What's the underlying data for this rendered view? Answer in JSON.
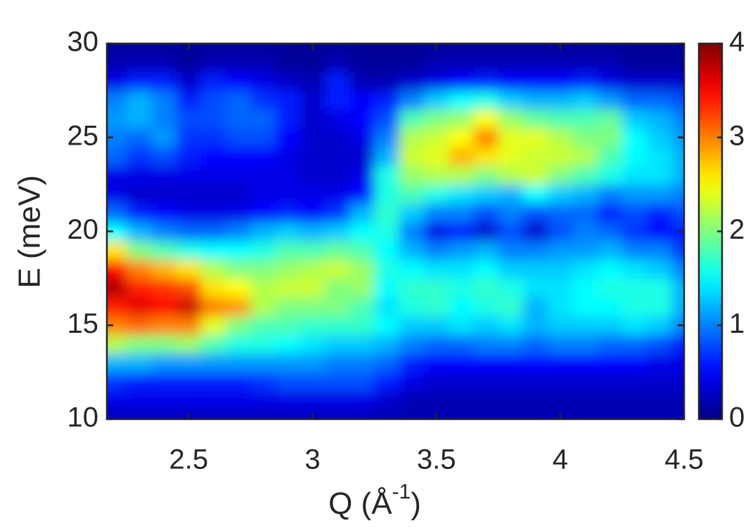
{
  "chart_data": {
    "type": "heatmap",
    "y_label": "E (meV)",
    "x_label": "Q (Å",
    "x_label_sup": "-1",
    "x_label_end": ")",
    "xlim": [
      2.17,
      4.5
    ],
    "ylim": [
      10,
      30
    ],
    "xticks": [
      2.5,
      3,
      3.5,
      4,
      4.5
    ],
    "yticks": [
      10,
      15,
      20,
      25,
      30
    ],
    "clim": [
      0,
      4
    ],
    "cticks": [
      0,
      1,
      2,
      3,
      4
    ],
    "colormap": "jet",
    "x": [
      2.2,
      2.3,
      2.4,
      2.5,
      2.6,
      2.7,
      2.8,
      2.9,
      3.0,
      3.1,
      3.2,
      3.3,
      3.4,
      3.5,
      3.6,
      3.7,
      3.8,
      3.9,
      4.0,
      4.1,
      4.2,
      4.3,
      4.4,
      4.5
    ],
    "y": [
      10,
      11,
      12,
      13,
      14,
      15,
      16,
      17,
      18,
      19,
      20,
      21,
      22,
      23,
      24,
      25,
      26,
      27,
      28,
      29,
      30
    ],
    "z": [
      [
        0.2,
        0.2,
        0.2,
        0.2,
        0.2,
        0.2,
        0.2,
        0.2,
        0.2,
        0.2,
        0.2,
        0.2,
        0.2,
        0.2,
        0.2,
        0.2,
        0.2,
        0.2,
        0.2,
        0.2,
        0.2,
        0.2,
        0.2,
        0.2
      ],
      [
        0.4,
        0.4,
        0.4,
        0.4,
        0.4,
        0.4,
        0.4,
        0.4,
        0.4,
        0.4,
        0.4,
        0.3,
        0.2,
        0.2,
        0.2,
        0.2,
        0.2,
        0.2,
        0.2,
        0.2,
        0.2,
        0.2,
        0.2,
        0.2
      ],
      [
        0.7,
        0.6,
        0.6,
        0.6,
        0.6,
        0.6,
        0.7,
        0.8,
        0.8,
        0.8,
        0.8,
        0.6,
        0.4,
        0.3,
        0.3,
        0.3,
        0.3,
        0.3,
        0.3,
        0.3,
        0.3,
        0.3,
        0.3,
        0.3
      ],
      [
        1.2,
        1.2,
        1.1,
        1.1,
        1.1,
        1.1,
        1.1,
        1.1,
        1.1,
        1.0,
        1.0,
        0.9,
        0.6,
        0.5,
        0.5,
        0.5,
        0.5,
        0.5,
        0.5,
        0.5,
        0.5,
        0.5,
        0.4,
        0.4
      ],
      [
        2.2,
        2.0,
        2.0,
        2.1,
        1.8,
        1.6,
        1.6,
        1.5,
        1.4,
        1.3,
        1.3,
        1.2,
        1.0,
        0.9,
        0.9,
        1.0,
        1.0,
        0.9,
        1.0,
        1.0,
        0.9,
        0.9,
        0.8,
        0.6
      ],
      [
        3.0,
        3.1,
        3.0,
        3.0,
        2.4,
        2.0,
        1.8,
        1.8,
        1.7,
        1.7,
        1.7,
        1.5,
        1.3,
        1.3,
        1.4,
        1.3,
        1.4,
        1.2,
        1.3,
        1.3,
        1.3,
        1.4,
        1.3,
        1.0
      ],
      [
        3.4,
        3.6,
        3.5,
        3.7,
        3.0,
        2.9,
        2.2,
        2.0,
        2.0,
        2.0,
        1.8,
        1.4,
        1.6,
        1.7,
        1.5,
        1.6,
        1.7,
        1.2,
        1.4,
        1.5,
        1.5,
        1.6,
        1.6,
        1.2
      ],
      [
        3.8,
        3.4,
        3.3,
        3.2,
        2.6,
        2.5,
        2.2,
        2.3,
        2.3,
        2.0,
        2.1,
        1.5,
        1.7,
        1.7,
        1.6,
        1.7,
        1.6,
        1.4,
        1.4,
        1.5,
        1.6,
        1.6,
        1.6,
        1.2
      ],
      [
        3.5,
        3.0,
        2.8,
        2.6,
        2.2,
        2.0,
        2.0,
        2.1,
        2.2,
        2.3,
        2.1,
        1.6,
        1.5,
        1.4,
        1.4,
        1.5,
        1.3,
        1.3,
        1.3,
        1.4,
        1.5,
        1.4,
        1.3,
        1.0
      ],
      [
        2.6,
        2.0,
        1.8,
        1.6,
        1.5,
        1.5,
        1.6,
        1.8,
        1.8,
        1.9,
        1.8,
        1.5,
        1.2,
        1.0,
        1.1,
        1.2,
        1.0,
        1.0,
        1.1,
        1.1,
        1.2,
        1.0,
        1.0,
        0.7
      ],
      [
        1.5,
        1.2,
        1.0,
        0.9,
        0.9,
        1.0,
        1.2,
        1.3,
        1.2,
        1.3,
        1.5,
        1.6,
        1.0,
        0.4,
        0.6,
        0.3,
        0.8,
        0.3,
        0.8,
        1.0,
        0.9,
        0.7,
        0.5,
        0.6
      ],
      [
        0.9,
        0.6,
        0.5,
        0.4,
        0.4,
        0.4,
        0.5,
        0.6,
        0.5,
        0.7,
        1.2,
        1.7,
        1.3,
        1.0,
        1.0,
        0.8,
        1.0,
        0.8,
        0.9,
        0.9,
        0.6,
        0.8,
        0.6,
        0.8
      ],
      [
        0.4,
        0.3,
        0.3,
        0.3,
        0.3,
        0.3,
        0.4,
        0.4,
        0.4,
        0.4,
        0.5,
        1.6,
        1.8,
        1.6,
        1.4,
        1.3,
        1.2,
        1.5,
        1.3,
        1.2,
        1.0,
        1.1,
        1.1,
        1.0
      ],
      [
        0.4,
        0.4,
        0.4,
        0.4,
        0.4,
        0.4,
        0.4,
        0.4,
        0.3,
        0.3,
        0.4,
        1.6,
        2.1,
        2.2,
        2.2,
        2.0,
        2.2,
        2.3,
        2.0,
        1.8,
        1.6,
        1.4,
        1.4,
        1.2
      ],
      [
        0.9,
        0.7,
        0.8,
        0.6,
        0.5,
        0.5,
        0.5,
        0.4,
        0.3,
        0.3,
        0.3,
        1.2,
        2.3,
        2.4,
        2.8,
        2.6,
        2.4,
        2.3,
        2.3,
        2.2,
        1.8,
        1.5,
        1.4,
        1.2
      ],
      [
        1.0,
        0.9,
        1.1,
        0.7,
        0.7,
        0.8,
        0.8,
        0.5,
        0.3,
        0.3,
        0.4,
        1.0,
        2.2,
        2.3,
        2.5,
        3.0,
        2.4,
        2.4,
        2.2,
        2.0,
        2.0,
        1.5,
        1.3,
        1.1
      ],
      [
        1.1,
        1.2,
        1.0,
        0.8,
        0.8,
        0.9,
        0.9,
        0.6,
        0.3,
        0.4,
        0.5,
        0.8,
        1.8,
        2.0,
        2.1,
        2.5,
        2.1,
        1.9,
        1.8,
        1.8,
        1.9,
        1.3,
        1.2,
        1.0
      ],
      [
        1.0,
        1.2,
        1.0,
        0.6,
        0.8,
        0.9,
        0.7,
        0.6,
        0.3,
        0.6,
        0.5,
        0.6,
        1.0,
        1.3,
        1.5,
        1.6,
        1.3,
        1.2,
        1.2,
        1.3,
        1.1,
        0.9,
        0.9,
        0.8
      ],
      [
        0.4,
        0.6,
        0.6,
        0.3,
        0.6,
        0.5,
        0.4,
        0.3,
        0.2,
        0.6,
        0.2,
        0.2,
        0.3,
        0.4,
        0.5,
        0.6,
        0.5,
        0.5,
        0.5,
        0.6,
        0.4,
        0.3,
        0.3,
        0.3
      ],
      [
        0.2,
        0.2,
        0.2,
        0.1,
        0.2,
        0.2,
        0.2,
        0.1,
        0.1,
        0.2,
        0.1,
        0.1,
        0.1,
        0.2,
        0.2,
        0.2,
        0.2,
        0.2,
        0.2,
        0.2,
        0.2,
        0.1,
        0.1,
        0.1
      ],
      [
        0.1,
        0.1,
        0.1,
        0.1,
        0.1,
        0.1,
        0.1,
        0.1,
        0.1,
        0.1,
        0.1,
        0.1,
        0.1,
        0.1,
        0.1,
        0.1,
        0.1,
        0.1,
        0.1,
        0.1,
        0.1,
        0.1,
        0.1,
        0.1
      ]
    ]
  }
}
